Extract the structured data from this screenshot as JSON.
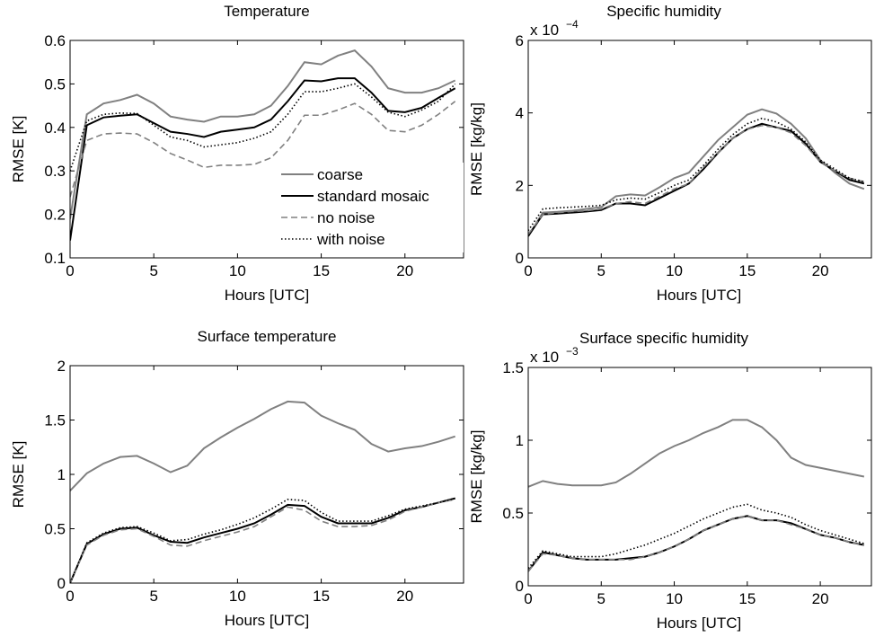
{
  "chart_data": [
    {
      "type": "line",
      "title": "Temperature",
      "xlabel": "Hours [UTC]",
      "ylabel": "RMSE  [K]",
      "x": [
        0,
        1,
        2,
        3,
        4,
        5,
        6,
        7,
        8,
        9,
        10,
        11,
        12,
        13,
        14,
        15,
        16,
        17,
        18,
        19,
        20,
        21,
        22,
        23
      ],
      "xlim": [
        0,
        23.5
      ],
      "xticks": [
        0,
        5,
        10,
        15,
        20
      ],
      "ylim": [
        0.1,
        0.6
      ],
      "yticks": [
        0.1,
        0.2,
        0.3,
        0.4,
        0.5,
        0.6
      ],
      "legend": "lower-right",
      "series": [
        {
          "name": "coarse",
          "color": "#808080",
          "dash": "solid",
          "values": [
            0.19,
            0.43,
            0.455,
            0.463,
            0.475,
            0.455,
            0.425,
            0.418,
            0.413,
            0.425,
            0.425,
            0.43,
            0.45,
            0.495,
            0.55,
            0.545,
            0.565,
            0.577,
            0.54,
            0.49,
            0.48,
            0.48,
            0.49,
            0.508
          ]
        },
        {
          "name": "standard mosaic",
          "color": "#000000",
          "dash": "solid",
          "values": [
            0.14,
            0.405,
            0.423,
            0.427,
            0.43,
            0.41,
            0.39,
            0.385,
            0.378,
            0.39,
            0.395,
            0.4,
            0.418,
            0.46,
            0.508,
            0.506,
            0.513,
            0.513,
            0.48,
            0.438,
            0.435,
            0.445,
            0.468,
            0.49
          ]
        },
        {
          "name": "no noise",
          "color": "#808080",
          "dash": "dashed",
          "values": [
            0.24,
            0.37,
            0.385,
            0.387,
            0.385,
            0.365,
            0.34,
            0.325,
            0.308,
            0.313,
            0.313,
            0.315,
            0.33,
            0.37,
            0.428,
            0.428,
            0.44,
            0.455,
            0.43,
            0.393,
            0.39,
            0.405,
            0.43,
            0.46
          ]
        },
        {
          "name": "with noise",
          "color": "#000000",
          "dash": "dotted",
          "values": [
            0.3,
            0.415,
            0.43,
            0.433,
            0.432,
            0.405,
            0.378,
            0.37,
            0.355,
            0.36,
            0.365,
            0.375,
            0.39,
            0.43,
            0.482,
            0.482,
            0.49,
            0.5,
            0.47,
            0.435,
            0.425,
            0.44,
            0.46,
            0.5
          ]
        }
      ]
    },
    {
      "type": "line",
      "title": "Specific humidity",
      "xlabel": "Hours [UTC]",
      "ylabel": "RMSE  [kg/kg]",
      "multiplier": {
        "base": "x 10",
        "exponent": "−4"
      },
      "x": [
        0,
        1,
        2,
        3,
        4,
        5,
        6,
        7,
        8,
        9,
        10,
        11,
        12,
        13,
        14,
        15,
        16,
        17,
        18,
        19,
        20,
        21,
        22,
        23
      ],
      "xlim": [
        0,
        23.5
      ],
      "xticks": [
        0,
        5,
        10,
        15,
        20
      ],
      "ylim": [
        0,
        6
      ],
      "yticks": [
        0,
        2,
        4,
        6
      ],
      "series": [
        {
          "color": "#808080",
          "dash": "solid",
          "values": [
            0.6,
            1.25,
            1.27,
            1.3,
            1.35,
            1.4,
            1.7,
            1.75,
            1.72,
            1.95,
            2.2,
            2.35,
            2.8,
            3.25,
            3.6,
            3.95,
            4.1,
            3.98,
            3.7,
            3.3,
            2.7,
            2.35,
            2.05,
            1.9
          ]
        },
        {
          "color": "#000000",
          "dash": "solid",
          "values": [
            0.6,
            1.2,
            1.22,
            1.25,
            1.28,
            1.32,
            1.5,
            1.5,
            1.45,
            1.65,
            1.85,
            2.05,
            2.45,
            2.9,
            3.3,
            3.55,
            3.7,
            3.6,
            3.5,
            3.15,
            2.65,
            2.4,
            2.15,
            2.05
          ]
        },
        {
          "color": "#808080",
          "dash": "dashed",
          "values": [
            0.65,
            1.2,
            1.25,
            1.28,
            1.3,
            1.35,
            1.5,
            1.55,
            1.5,
            1.7,
            1.9,
            2.05,
            2.5,
            2.9,
            3.3,
            3.55,
            3.65,
            3.6,
            3.45,
            3.1,
            2.65,
            2.4,
            2.2,
            2.1
          ]
        },
        {
          "color": "#000000",
          "dash": "dotted",
          "values": [
            0.75,
            1.35,
            1.38,
            1.4,
            1.42,
            1.45,
            1.6,
            1.65,
            1.62,
            1.8,
            2.0,
            2.15,
            2.55,
            3.0,
            3.4,
            3.7,
            3.85,
            3.75,
            3.55,
            3.2,
            2.7,
            2.45,
            2.2,
            2.1
          ]
        }
      ]
    },
    {
      "type": "line",
      "title": "Surface temperature",
      "xlabel": "Hours [UTC]",
      "ylabel": "RMSE  [K]",
      "x": [
        0,
        1,
        2,
        3,
        4,
        5,
        6,
        7,
        8,
        9,
        10,
        11,
        12,
        13,
        14,
        15,
        16,
        17,
        18,
        19,
        20,
        21,
        22,
        23
      ],
      "xlim": [
        0,
        23.5
      ],
      "xticks": [
        0,
        5,
        10,
        15,
        20
      ],
      "ylim": [
        0,
        2
      ],
      "yticks": [
        0,
        0.5,
        1,
        1.5,
        2
      ],
      "series": [
        {
          "color": "#808080",
          "dash": "solid",
          "values": [
            0.85,
            1.01,
            1.1,
            1.16,
            1.17,
            1.1,
            1.02,
            1.08,
            1.24,
            1.34,
            1.43,
            1.51,
            1.6,
            1.67,
            1.66,
            1.54,
            1.47,
            1.41,
            1.28,
            1.21,
            1.24,
            1.26,
            1.3,
            1.35
          ]
        },
        {
          "color": "#000000",
          "dash": "solid",
          "values": [
            0.0,
            0.36,
            0.45,
            0.5,
            0.51,
            0.44,
            0.38,
            0.37,
            0.42,
            0.46,
            0.5,
            0.55,
            0.63,
            0.72,
            0.71,
            0.61,
            0.55,
            0.55,
            0.55,
            0.6,
            0.67,
            0.7,
            0.74,
            0.78
          ]
        },
        {
          "color": "#808080",
          "dash": "dashed",
          "values": [
            0.0,
            0.35,
            0.44,
            0.49,
            0.5,
            0.43,
            0.35,
            0.34,
            0.39,
            0.43,
            0.47,
            0.52,
            0.61,
            0.7,
            0.67,
            0.57,
            0.52,
            0.52,
            0.53,
            0.58,
            0.66,
            0.7,
            0.74,
            0.77
          ]
        },
        {
          "color": "#000000",
          "dash": "dotted",
          "values": [
            0.0,
            0.37,
            0.46,
            0.51,
            0.52,
            0.46,
            0.39,
            0.4,
            0.45,
            0.49,
            0.54,
            0.6,
            0.68,
            0.77,
            0.76,
            0.65,
            0.57,
            0.57,
            0.57,
            0.62,
            0.68,
            0.71,
            0.74,
            0.78
          ]
        }
      ]
    },
    {
      "type": "line",
      "title": "Surface specific humidity",
      "xlabel": "Hours [UTC]",
      "ylabel": "RMSE  [kg/kg]",
      "multiplier": {
        "base": "x 10",
        "exponent": "−3"
      },
      "x": [
        0,
        1,
        2,
        3,
        4,
        5,
        6,
        7,
        8,
        9,
        10,
        11,
        12,
        13,
        14,
        15,
        16,
        17,
        18,
        19,
        20,
        21,
        22,
        23
      ],
      "xlim": [
        0,
        23.5
      ],
      "xticks": [
        0,
        5,
        10,
        15,
        20
      ],
      "ylim": [
        0,
        1.5
      ],
      "yticks": [
        0,
        0.5,
        1,
        1.5
      ],
      "series": [
        {
          "color": "#808080",
          "dash": "solid",
          "values": [
            0.68,
            0.72,
            0.7,
            0.69,
            0.69,
            0.69,
            0.71,
            0.77,
            0.84,
            0.91,
            0.96,
            1.0,
            1.05,
            1.09,
            1.14,
            1.14,
            1.09,
            1.0,
            0.88,
            0.83,
            0.81,
            0.79,
            0.77,
            0.75
          ]
        },
        {
          "color": "#000000",
          "dash": "solid",
          "values": [
            0.1,
            0.23,
            0.21,
            0.19,
            0.18,
            0.18,
            0.18,
            0.19,
            0.2,
            0.23,
            0.27,
            0.32,
            0.38,
            0.42,
            0.46,
            0.48,
            0.45,
            0.45,
            0.43,
            0.39,
            0.35,
            0.33,
            0.3,
            0.28
          ]
        },
        {
          "color": "#808080",
          "dash": "dashed",
          "values": [
            0.1,
            0.22,
            0.21,
            0.19,
            0.18,
            0.18,
            0.18,
            0.18,
            0.2,
            0.23,
            0.27,
            0.32,
            0.38,
            0.42,
            0.46,
            0.48,
            0.45,
            0.45,
            0.42,
            0.39,
            0.35,
            0.33,
            0.3,
            0.28
          ]
        },
        {
          "color": "#000000",
          "dash": "dotted",
          "values": [
            0.12,
            0.24,
            0.22,
            0.2,
            0.2,
            0.2,
            0.22,
            0.25,
            0.28,
            0.32,
            0.36,
            0.41,
            0.46,
            0.5,
            0.54,
            0.56,
            0.52,
            0.5,
            0.47,
            0.42,
            0.38,
            0.35,
            0.32,
            0.29
          ]
        }
      ]
    }
  ]
}
